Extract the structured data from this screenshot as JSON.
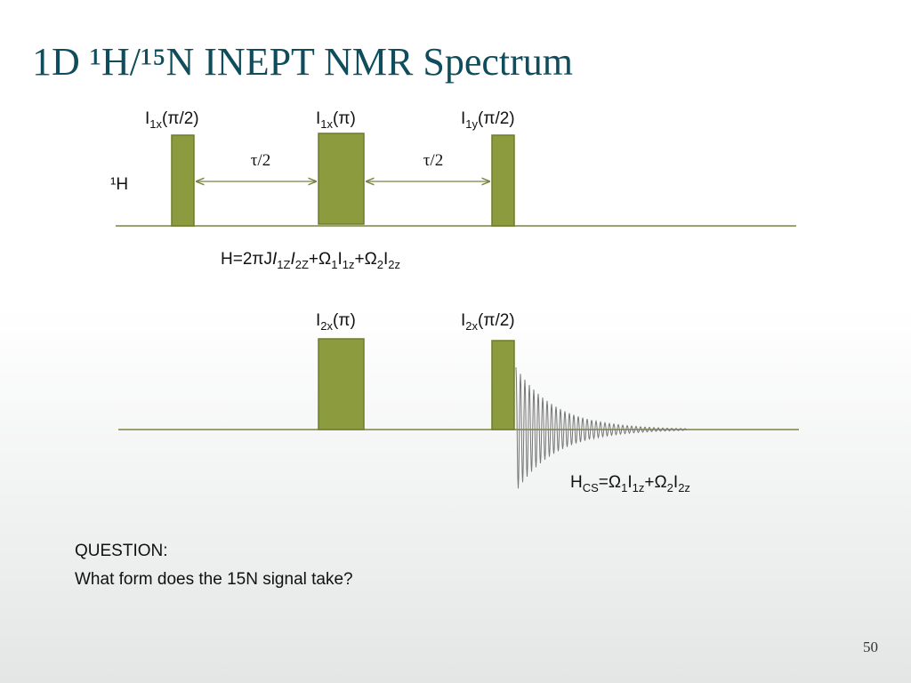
{
  "title": "1D ¹H/¹⁵N INEPT NMR Spectrum",
  "proton_label": "¹H",
  "upper_pulses": [
    {
      "label": [
        {
          "t": "I"
        },
        {
          "sub": "1x"
        },
        {
          "t": "(π/2)"
        }
      ]
    },
    {
      "label": [
        {
          "t": "I"
        },
        {
          "sub": "1x"
        },
        {
          "t": "(π)"
        }
      ]
    },
    {
      "label": [
        {
          "t": "I"
        },
        {
          "sub": "1y"
        },
        {
          "t": "(π/2)"
        }
      ]
    }
  ],
  "delays": [
    "τ/2",
    "τ/2"
  ],
  "hamiltonian": [
    {
      "t": "H=2πJ"
    },
    {
      "i": "I"
    },
    {
      "sub": "1Z"
    },
    {
      "i": "I"
    },
    {
      "sub": "2Z"
    },
    {
      "t": "+Ω"
    },
    {
      "sub": "1"
    },
    {
      "t": "I"
    },
    {
      "sub": "1z"
    },
    {
      "t": "+Ω"
    },
    {
      "sub": "2"
    },
    {
      "t": "I"
    },
    {
      "sub": "2z"
    }
  ],
  "lower_pulses": [
    {
      "label": [
        {
          "t": "I"
        },
        {
          "sub": "2x"
        },
        {
          "t": "(π)"
        }
      ]
    },
    {
      "label": [
        {
          "t": "I"
        },
        {
          "sub": "2x"
        },
        {
          "t": "(π/2)"
        }
      ]
    }
  ],
  "chemical_shift": [
    {
      "t": "H"
    },
    {
      "sub": "CS"
    },
    {
      "t": "=Ω"
    },
    {
      "sub": "1"
    },
    {
      "t": "I"
    },
    {
      "sub": "1z"
    },
    {
      "t": "+Ω"
    },
    {
      "sub": "2"
    },
    {
      "t": "I"
    },
    {
      "sub": "2z"
    }
  ],
  "question": [
    "QUESTION:",
    "What form does the 15N signal take?"
  ],
  "page_number": "50"
}
